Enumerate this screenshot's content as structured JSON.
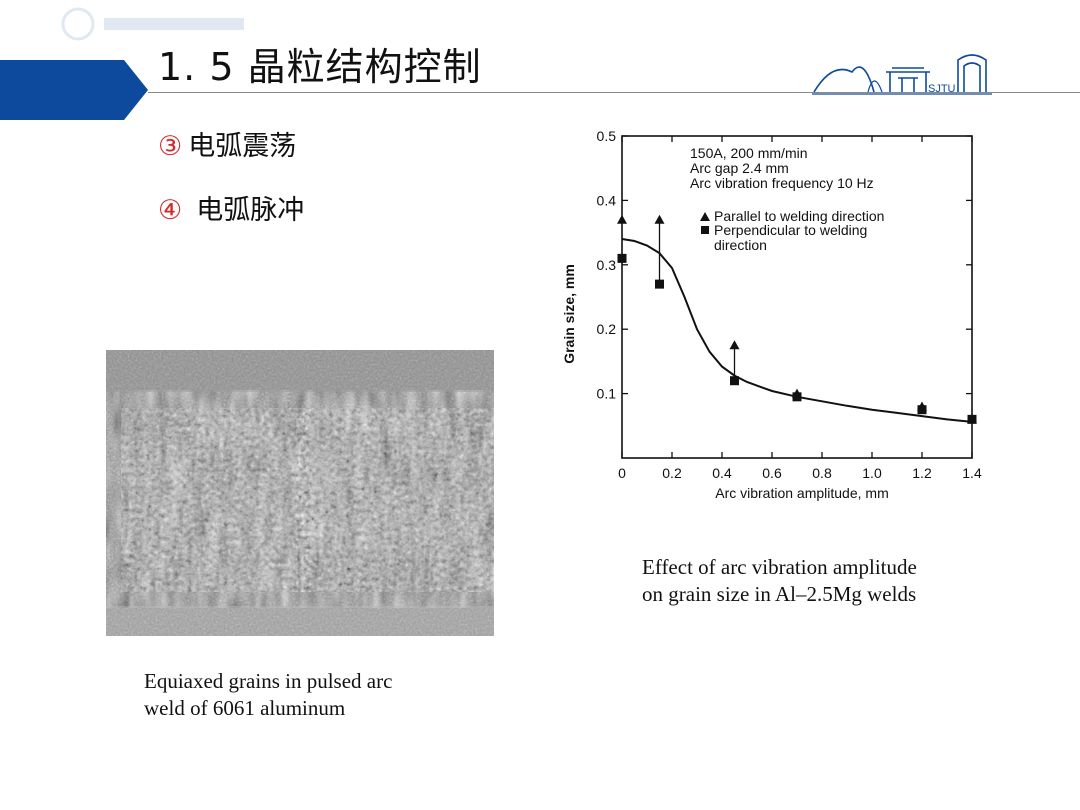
{
  "slide": {
    "title": "1. 5 晶粒结构控制",
    "logo_text": "SJTU",
    "bullets": [
      {
        "num": "③",
        "text": "电弧震荡"
      },
      {
        "num": "④",
        "text": "电弧脉冲"
      }
    ],
    "photo_caption": [
      "Equiaxed grains in pulsed arc",
      "weld of 6061 aluminum"
    ],
    "chart_caption": [
      "Effect of arc vibration amplitude",
      "on grain size in Al–2.5Mg welds"
    ],
    "colors": {
      "accent": "#0d4a9e",
      "bullet_number": "#d22b2b"
    }
  },
  "chart_data": {
    "type": "scatter",
    "xlabel": "Arc vibration amplitude, mm",
    "ylabel": "Grain size, mm",
    "xlim": [
      0,
      1.4
    ],
    "ylim": [
      0,
      0.5
    ],
    "xticks": [
      0,
      0.2,
      0.4,
      0.6,
      0.8,
      1.0,
      1.2,
      1.4
    ],
    "xtick_labels": [
      "0",
      "0.2",
      "0.4",
      "0.6",
      "0.8",
      "1.0",
      "1.2",
      "1.4"
    ],
    "yticks": [
      0.1,
      0.2,
      0.3,
      0.4,
      0.5
    ],
    "ytick_labels": [
      "0.1",
      "0.2",
      "0.3",
      "0.4",
      "0.5"
    ],
    "annotation": [
      "150A, 200 mm/min",
      "Arc gap 2.4 mm",
      "Arc vibration frequency 10 Hz"
    ],
    "grid": false,
    "legend_position": "top-right",
    "series": [
      {
        "name": "Parallel to welding direction",
        "marker": "triangle",
        "x": [
          0,
          0.15,
          0.45,
          0.7,
          1.2,
          1.4
        ],
        "y": [
          0.37,
          0.37,
          0.175,
          0.1,
          0.08,
          0.06
        ]
      },
      {
        "name": "Perpendicular to welding direction",
        "marker": "square",
        "x": [
          0,
          0.15,
          0.45,
          0.7,
          1.2,
          1.4
        ],
        "y": [
          0.31,
          0.27,
          0.12,
          0.095,
          0.075,
          0.06
        ]
      }
    ],
    "error_bars": [
      {
        "x": 0.15,
        "y_low": 0.27,
        "y_high": 0.37
      },
      {
        "x": 0.45,
        "y_low": 0.12,
        "y_high": 0.175
      }
    ],
    "fit_curve": {
      "x": [
        0,
        0.05,
        0.1,
        0.15,
        0.2,
        0.25,
        0.3,
        0.35,
        0.4,
        0.45,
        0.5,
        0.6,
        0.7,
        0.8,
        0.9,
        1.0,
        1.1,
        1.2,
        1.3,
        1.4
      ],
      "y": [
        0.34,
        0.337,
        0.33,
        0.318,
        0.295,
        0.25,
        0.2,
        0.165,
        0.142,
        0.128,
        0.118,
        0.104,
        0.095,
        0.088,
        0.081,
        0.075,
        0.07,
        0.065,
        0.06,
        0.056
      ]
    }
  }
}
